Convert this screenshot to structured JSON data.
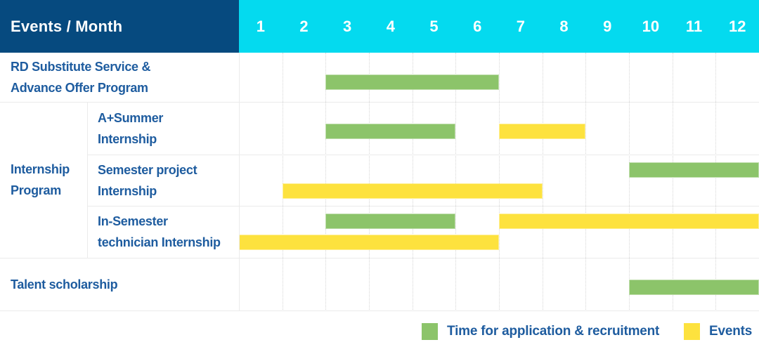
{
  "header": {
    "title": "Events / Month",
    "months": [
      "1",
      "2",
      "3",
      "4",
      "5",
      "6",
      "7",
      "8",
      "9",
      "10",
      "11",
      "12"
    ]
  },
  "rows": {
    "rd_program": {
      "line1": "RD Substitute Service &",
      "line2": "Advance Offer Program"
    },
    "internship_group": {
      "line1": "Internship",
      "line2": "Program"
    },
    "a_plus_summer": {
      "line1": "A+Summer",
      "line2": "Internship"
    },
    "semester_project": {
      "line1": "Semester project",
      "line2": "Internship"
    },
    "in_semester": {
      "line1": "In-Semester",
      "line2": "technician Internship"
    },
    "talent": {
      "line1": "Talent scholarship"
    }
  },
  "legend": {
    "application": "Time for application & recruitment",
    "events": "Events"
  },
  "colors": {
    "header_navy": "#064a7f",
    "header_cyan": "#04daef",
    "application_green": "#8cc46a",
    "events_yellow": "#fde23e",
    "label_blue": "#1e5c9f"
  },
  "chart_data": {
    "type": "bar",
    "variant": "gantt",
    "title": "Events / Month",
    "xlabel": "Month",
    "x_ticks": [
      1,
      2,
      3,
      4,
      5,
      6,
      7,
      8,
      9,
      10,
      11,
      12
    ],
    "x_range": [
      1,
      12
    ],
    "grid": true,
    "legend_position": "bottom-right",
    "legend": [
      {
        "name": "Time for application & recruitment",
        "color": "#8cc46a"
      },
      {
        "name": "Events",
        "color": "#fde23e"
      }
    ],
    "tasks": [
      {
        "row": "RD Substitute Service & Advance Offer Program",
        "group": "",
        "bars": [
          {
            "type": "application",
            "start_month": 3,
            "end_month": 6,
            "lane": "single"
          }
        ]
      },
      {
        "row": "A+Summer Internship",
        "group": "Internship Program",
        "bars": [
          {
            "type": "application",
            "start_month": 3,
            "end_month": 5,
            "lane": "single"
          },
          {
            "type": "events",
            "start_month": 7,
            "end_month": 8,
            "lane": "single"
          }
        ]
      },
      {
        "row": "Semester project Internship",
        "group": "Internship Program",
        "bars": [
          {
            "type": "application",
            "start_month": 10,
            "end_month": 12,
            "lane": "top"
          },
          {
            "type": "events",
            "start_month": 2,
            "end_month": 7,
            "lane": "bottom"
          }
        ]
      },
      {
        "row": "In-Semester technician Internship",
        "group": "Internship Program",
        "bars": [
          {
            "type": "application",
            "start_month": 3,
            "end_month": 5,
            "lane": "top"
          },
          {
            "type": "events",
            "start_month": 7,
            "end_month": 12,
            "lane": "top"
          },
          {
            "type": "events",
            "start_month": 1,
            "end_month": 6,
            "lane": "bottom"
          }
        ]
      },
      {
        "row": "Talent scholarship",
        "group": "",
        "bars": [
          {
            "type": "application",
            "start_month": 10,
            "end_month": 12,
            "lane": "single"
          }
        ]
      }
    ]
  }
}
